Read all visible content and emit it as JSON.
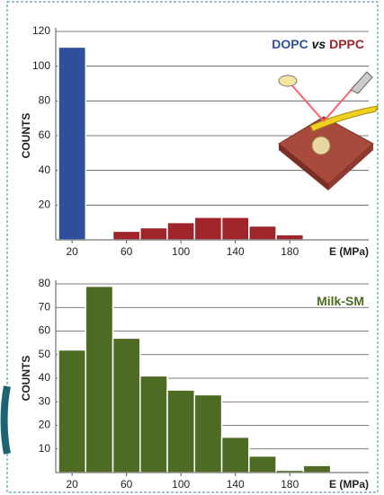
{
  "chart_data": [
    {
      "type": "histogram",
      "ylabel": "COUNTS",
      "xlabel": "E (MPa)",
      "legend_joiner": "vs",
      "series": [
        {
          "name": "DOPC",
          "color": "#2e4f9a",
          "bins": [
            10,
            30
          ],
          "values": [
            111
          ]
        },
        {
          "name": "DPPC",
          "color": "#a0242b",
          "bins": [
            50,
            70,
            90,
            110,
            130,
            150,
            170,
            190
          ],
          "values": [
            5,
            7,
            10,
            13,
            13,
            8,
            3
          ]
        }
      ],
      "xlim": [
        8,
        238
      ],
      "xticks": [
        20,
        60,
        100,
        140,
        180
      ],
      "ylim": [
        0,
        120
      ],
      "yticks": [
        20,
        40,
        60,
        80,
        100,
        120
      ],
      "grid": true
    },
    {
      "type": "histogram",
      "ylabel": "COUNTS",
      "xlabel": "E (MPa)",
      "series": [
        {
          "name": "Milk-SM",
          "color": "#4e6b23",
          "bins": [
            10,
            30,
            50,
            70,
            90,
            110,
            130,
            150,
            170,
            190,
            210
          ],
          "values": [
            52,
            79,
            57,
            41,
            35,
            33,
            15,
            7,
            1,
            3
          ]
        }
      ],
      "xlim": [
        8,
        238
      ],
      "xticks": [
        20,
        60,
        100,
        140,
        180
      ],
      "ylim": [
        0,
        80
      ],
      "yticks": [
        10,
        20,
        30,
        40,
        50,
        60,
        70,
        80
      ],
      "grid": true
    }
  ]
}
